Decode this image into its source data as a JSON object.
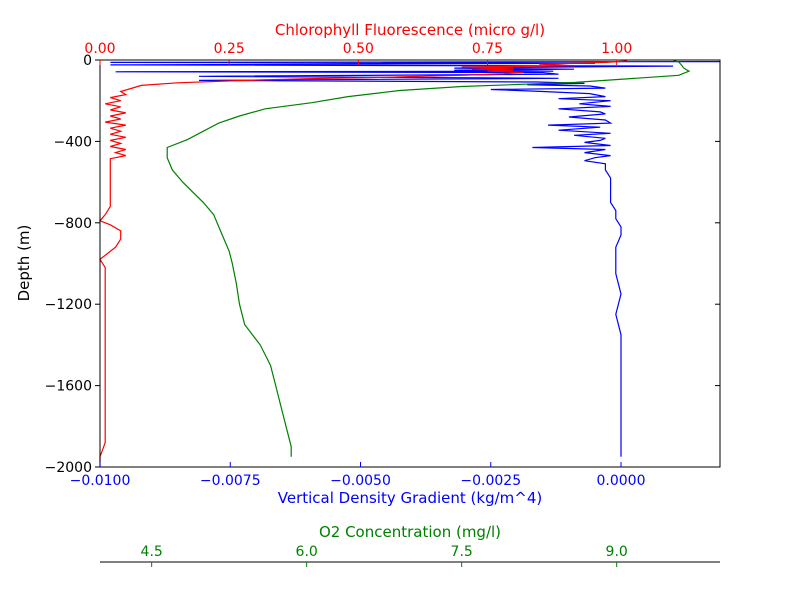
{
  "chart_data": {
    "type": "line",
    "title": "",
    "y_axis": {
      "label": "Depth (m)",
      "range": [
        -2000,
        0
      ],
      "ticks": [
        -2000,
        -1600,
        -1200,
        -800,
        -400,
        0
      ],
      "tick_labels": [
        "−2000",
        "−1600",
        "−1200",
        "−800",
        "−400",
        "0"
      ],
      "color": "#000000"
    },
    "axes": {
      "density": {
        "label": "Vertical Density Gradient (kg/m^4)",
        "color": "#0000ff",
        "range": [
          -0.01,
          0.0019
        ],
        "ticks": [
          -0.01,
          -0.0075,
          -0.005,
          -0.0025,
          0.0
        ],
        "tick_labels": [
          "−0.0100",
          "−0.0075",
          "−0.0050",
          "−0.0025",
          "0.0000"
        ]
      },
      "chlorophyll": {
        "label": "Chlorophyll Fluorescence (micro g/l)",
        "color": "#ff0000",
        "range": [
          0.0,
          1.2
        ],
        "ticks": [
          0.0,
          0.25,
          0.5,
          0.75,
          1.0
        ],
        "tick_labels": [
          "0.00",
          "0.25",
          "0.50",
          "0.75",
          "1.00"
        ]
      },
      "oxygen": {
        "label": "O2 Concentration (mg/l)",
        "color": "#008000",
        "range": [
          4.0,
          10.0
        ],
        "ticks": [
          4.5,
          6.0,
          7.5,
          9.0
        ],
        "tick_labels": [
          "4.5",
          "6.0",
          "7.5",
          "9.0"
        ]
      }
    },
    "series": [
      {
        "axis": "density",
        "color": "#0000ff",
        "points": [
          [
            0.0019,
            -8
          ],
          [
            -0.0098,
            -12
          ],
          [
            -0.0005,
            -16
          ],
          [
            -0.0098,
            -24
          ],
          [
            0.001,
            -30
          ],
          [
            -0.0014,
            -35
          ],
          [
            -0.0032,
            -40
          ],
          [
            -0.0009,
            -45
          ],
          [
            -0.0032,
            -50
          ],
          [
            -0.0013,
            -55
          ],
          [
            -0.0097,
            -58
          ],
          [
            -0.0015,
            -62
          ],
          [
            -0.0012,
            -70
          ],
          [
            -0.0081,
            -80
          ],
          [
            -0.0012,
            -90
          ],
          [
            -0.0081,
            -100
          ],
          [
            -0.0016,
            -108
          ],
          [
            -0.0007,
            -115
          ],
          [
            -0.0018,
            -122
          ],
          [
            -0.0006,
            -128
          ],
          [
            -0.0003,
            -138
          ],
          [
            -0.0025,
            -145
          ],
          [
            -0.0015,
            -155
          ],
          [
            -0.0006,
            -165
          ],
          [
            -0.0003,
            -180
          ],
          [
            -0.0012,
            -190
          ],
          [
            -0.0002,
            -200
          ],
          [
            -0.0008,
            -215
          ],
          [
            -0.0002,
            -228
          ],
          [
            -0.0012,
            -240
          ],
          [
            -0.0004,
            -255
          ],
          [
            -0.0003,
            -265
          ],
          [
            -0.001,
            -280
          ],
          [
            -0.0003,
            -295
          ],
          [
            -0.0002,
            -310
          ],
          [
            -0.0014,
            -320
          ],
          [
            -0.0004,
            -330
          ],
          [
            -0.0012,
            -345
          ],
          [
            -0.0002,
            -360
          ],
          [
            -0.0009,
            -370
          ],
          [
            -0.0003,
            -385
          ],
          [
            -0.0004,
            -395
          ],
          [
            -0.0007,
            -405
          ],
          [
            -0.0002,
            -420
          ],
          [
            -0.0017,
            -430
          ],
          [
            -0.0003,
            -440
          ],
          [
            -0.0007,
            -455
          ],
          [
            -0.0002,
            -470
          ],
          [
            -0.0005,
            -480
          ],
          [
            -0.0007,
            -495
          ],
          [
            -0.0003,
            -510
          ],
          [
            -0.0003,
            -540
          ],
          [
            -0.0002,
            -580
          ],
          [
            -0.0002,
            -620
          ],
          [
            -0.0002,
            -660
          ],
          [
            -0.0002,
            -700
          ],
          [
            -0.0001,
            -740
          ],
          [
            -0.0001,
            -780
          ],
          [
            0.0,
            -820
          ],
          [
            0.0,
            -860
          ],
          [
            -0.0001,
            -920
          ],
          [
            -0.0001,
            -980
          ],
          [
            -0.0001,
            -1050
          ],
          [
            0.0,
            -1150
          ],
          [
            -0.0001,
            -1250
          ],
          [
            0.0,
            -1350
          ],
          [
            0.0,
            -1450
          ],
          [
            0.0,
            -1550
          ],
          [
            0.0,
            -1650
          ],
          [
            0.0,
            -1750
          ],
          [
            0.0,
            -1850
          ],
          [
            0.0,
            -1950
          ]
        ]
      },
      {
        "axis": "chlorophyll",
        "color": "#ff0000",
        "points": [
          [
            1.02,
            -5
          ],
          [
            0.98,
            -12
          ],
          [
            0.85,
            -20
          ],
          [
            0.92,
            -28
          ],
          [
            0.7,
            -35
          ],
          [
            0.8,
            -40
          ],
          [
            0.72,
            -45
          ],
          [
            0.8,
            -50
          ],
          [
            0.75,
            -55
          ],
          [
            0.82,
            -60
          ],
          [
            0.78,
            -68
          ],
          [
            0.7,
            -75
          ],
          [
            0.62,
            -80
          ],
          [
            0.55,
            -85
          ],
          [
            0.4,
            -92
          ],
          [
            0.28,
            -100
          ],
          [
            0.15,
            -112
          ],
          [
            0.08,
            -125
          ],
          [
            0.06,
            -140
          ],
          [
            0.04,
            -155
          ],
          [
            0.05,
            -170
          ],
          [
            0.02,
            -185
          ],
          [
            0.04,
            -200
          ],
          [
            0.01,
            -215
          ],
          [
            0.04,
            -230
          ],
          [
            0.02,
            -245
          ],
          [
            0.05,
            -260
          ],
          [
            0.02,
            -275
          ],
          [
            0.04,
            -290
          ],
          [
            0.01,
            -305
          ],
          [
            0.05,
            -320
          ],
          [
            0.02,
            -335
          ],
          [
            0.04,
            -350
          ],
          [
            0.02,
            -365
          ],
          [
            0.05,
            -380
          ],
          [
            0.02,
            -395
          ],
          [
            0.04,
            -410
          ],
          [
            0.02,
            -425
          ],
          [
            0.05,
            -440
          ],
          [
            0.03,
            -455
          ],
          [
            0.05,
            -470
          ],
          [
            0.02,
            -485
          ],
          [
            0.02,
            -520
          ],
          [
            0.02,
            -560
          ],
          [
            0.02,
            -600
          ],
          [
            0.02,
            -640
          ],
          [
            0.02,
            -680
          ],
          [
            0.02,
            -720
          ],
          [
            0.01,
            -760
          ],
          [
            0.0,
            -790
          ],
          [
            0.02,
            -810
          ],
          [
            0.04,
            -840
          ],
          [
            0.04,
            -880
          ],
          [
            0.03,
            -920
          ],
          [
            0.0,
            -980
          ],
          [
            0.01,
            -1020
          ],
          [
            0.01,
            -1100
          ],
          [
            0.01,
            -1200
          ],
          [
            0.01,
            -1300
          ],
          [
            0.01,
            -1400
          ],
          [
            0.01,
            -1500
          ],
          [
            0.01,
            -1600
          ],
          [
            0.01,
            -1700
          ],
          [
            0.01,
            -1800
          ],
          [
            0.01,
            -1880
          ],
          [
            0.0,
            -1950
          ],
          [
            0.0,
            -2000
          ]
        ]
      },
      {
        "axis": "oxygen",
        "color": "#008000",
        "points": [
          [
            9.55,
            -2
          ],
          [
            9.6,
            -10
          ],
          [
            9.62,
            -20
          ],
          [
            9.65,
            -40
          ],
          [
            9.7,
            -55
          ],
          [
            9.6,
            -75
          ],
          [
            8.6,
            -110
          ],
          [
            7.5,
            -130
          ],
          [
            6.9,
            -150
          ],
          [
            6.4,
            -180
          ],
          [
            6.05,
            -210
          ],
          [
            5.6,
            -240
          ],
          [
            5.35,
            -275
          ],
          [
            5.15,
            -310
          ],
          [
            5.0,
            -350
          ],
          [
            4.85,
            -390
          ],
          [
            4.65,
            -430
          ],
          [
            4.65,
            -480
          ],
          [
            4.7,
            -540
          ],
          [
            4.8,
            -600
          ],
          [
            4.9,
            -650
          ],
          [
            5.0,
            -700
          ],
          [
            5.1,
            -760
          ],
          [
            5.15,
            -820
          ],
          [
            5.2,
            -880
          ],
          [
            5.25,
            -940
          ],
          [
            5.28,
            -1000
          ],
          [
            5.32,
            -1100
          ],
          [
            5.35,
            -1200
          ],
          [
            5.4,
            -1300
          ],
          [
            5.55,
            -1400
          ],
          [
            5.65,
            -1500
          ],
          [
            5.7,
            -1600
          ],
          [
            5.75,
            -1700
          ],
          [
            5.8,
            -1800
          ],
          [
            5.85,
            -1900
          ],
          [
            5.85,
            -1950
          ]
        ]
      }
    ]
  }
}
